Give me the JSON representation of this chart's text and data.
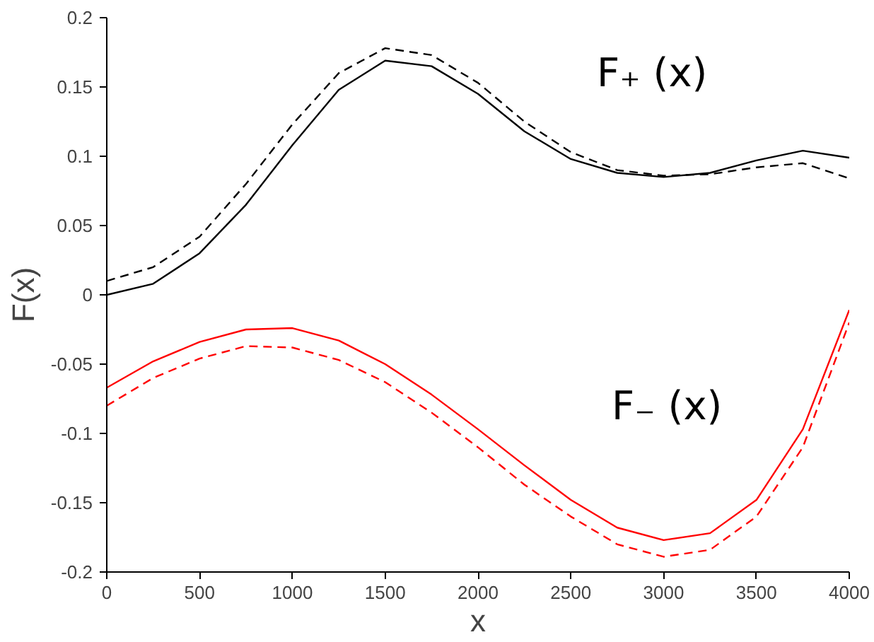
{
  "chart_data": {
    "type": "line",
    "xlabel": "x",
    "ylabel": "F(x)",
    "x": [
      0,
      250,
      500,
      750,
      1000,
      1250,
      1500,
      1750,
      2000,
      2250,
      2500,
      2750,
      3000,
      3250,
      3500,
      3750,
      4000
    ],
    "series": [
      {
        "color": "#000000",
        "line_style": "solid",
        "values": [
          0,
          0.008,
          0.03,
          0.065,
          0.108,
          0.148,
          0.169,
          0.165,
          0.145,
          0.118,
          0.098,
          0.088,
          0.085,
          0.088,
          0.097,
          0.104,
          0.099
        ]
      },
      {
        "color": "#000000",
        "line_style": "dashed",
        "values": [
          0.01,
          0.02,
          0.042,
          0.08,
          0.123,
          0.16,
          0.178,
          0.173,
          0.153,
          0.125,
          0.103,
          0.09,
          0.086,
          0.087,
          0.092,
          0.095,
          0.084
        ]
      },
      {
        "color": "#ff0000",
        "line_style": "solid",
        "values": [
          -0.067,
          -0.048,
          -0.034,
          -0.025,
          -0.024,
          -0.033,
          -0.05,
          -0.072,
          -0.097,
          -0.123,
          -0.148,
          -0.168,
          -0.177,
          -0.172,
          -0.148,
          -0.097,
          -0.011
        ]
      },
      {
        "color": "#ff0000",
        "line_style": "dashed",
        "values": [
          -0.08,
          -0.06,
          -0.046,
          -0.037,
          -0.038,
          -0.047,
          -0.063,
          -0.085,
          -0.11,
          -0.137,
          -0.16,
          -0.18,
          -0.189,
          -0.184,
          -0.16,
          -0.11,
          -0.02
        ]
      }
    ],
    "annotations": [
      "F₊ (x)",
      "F₋ (x)"
    ],
    "xlim": [
      0,
      4000
    ],
    "ylim": [
      -0.2,
      0.2
    ],
    "xticks": [
      0,
      500,
      1000,
      1500,
      2000,
      2500,
      3000,
      3500,
      4000
    ],
    "yticks": [
      -0.2,
      -0.15,
      -0.1,
      -0.05,
      0,
      0.05,
      0.1,
      0.15,
      0.2
    ],
    "grid": false,
    "marker": "none"
  }
}
